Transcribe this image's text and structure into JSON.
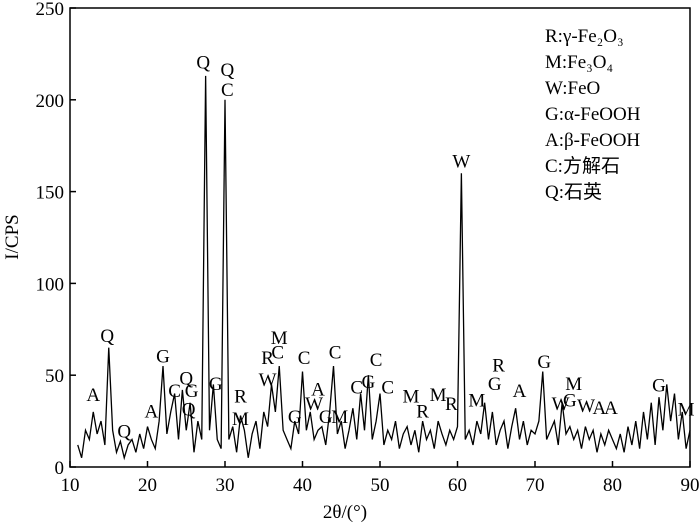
{
  "chart_data": {
    "type": "line",
    "xlabel": "2θ/(°)",
    "ylabel": "I/CPS",
    "xlim": [
      10,
      90
    ],
    "xticks": [
      10,
      20,
      30,
      40,
      50,
      60,
      70,
      80,
      90
    ],
    "ylim": [
      0,
      250
    ],
    "yticks": [
      0,
      50,
      100,
      150,
      200,
      250
    ],
    "legend_text": [
      "R:γ-Fe₂O₃",
      "M:Fe₃O₄",
      "W:FeO",
      "G:α-FeOOH",
      "A:β-FeOOH",
      "C:方解石",
      "Q:石英"
    ],
    "series": [
      {
        "color": "#000000",
        "x": [
          11,
          11.5,
          12,
          12.5,
          13,
          13.5,
          14,
          14.5,
          15,
          15.5,
          16,
          16.5,
          17,
          17.5,
          18,
          18.5,
          19,
          19.5,
          20,
          20.5,
          21,
          21.5,
          22,
          22.5,
          23,
          23.5,
          24,
          24.5,
          25,
          25.5,
          26,
          26.5,
          27,
          27.5,
          28,
          28.5,
          29,
          29.5,
          30,
          30.5,
          31,
          31.5,
          32,
          32.5,
          33,
          33.5,
          34,
          34.5,
          35,
          35.5,
          36,
          36.5,
          37,
          37.5,
          38,
          38.5,
          39,
          39.5,
          40,
          40.5,
          41,
          41.5,
          42,
          42.5,
          43,
          43.5,
          44,
          44.5,
          45,
          45.5,
          46,
          46.5,
          47,
          47.5,
          48,
          48.5,
          49,
          49.5,
          50,
          50.5,
          51,
          51.5,
          52,
          52.5,
          53,
          53.5,
          54,
          54.5,
          55,
          55.5,
          56,
          56.5,
          57,
          57.5,
          58,
          58.5,
          59,
          59.5,
          60,
          60.5,
          61,
          61.5,
          62,
          62.5,
          63,
          63.5,
          64,
          64.5,
          65,
          65.5,
          66,
          66.5,
          67,
          67.5,
          68,
          68.5,
          69,
          69.5,
          70,
          70.5,
          71,
          71.5,
          72,
          72.5,
          73,
          73.5,
          74,
          74.5,
          75,
          75.5,
          76,
          76.5,
          77,
          77.5,
          78,
          78.5,
          79,
          79.5,
          80,
          80.5,
          81,
          81.5,
          82,
          82.5,
          83,
          83.5,
          84,
          84.5,
          85,
          85.5,
          86,
          86.5,
          87,
          87.5,
          88,
          88.5,
          89,
          89.5,
          90
        ],
        "values": [
          12,
          5,
          20,
          15,
          30,
          18,
          25,
          12,
          65,
          20,
          8,
          14,
          5,
          12,
          15,
          8,
          18,
          10,
          22,
          15,
          10,
          25,
          55,
          18,
          30,
          40,
          15,
          42,
          20,
          35,
          8,
          25,
          15,
          213,
          20,
          45,
          15,
          10,
          200,
          15,
          22,
          8,
          28,
          20,
          5,
          18,
          25,
          10,
          30,
          22,
          45,
          30,
          55,
          20,
          15,
          10,
          25,
          18,
          52,
          20,
          30,
          15,
          20,
          22,
          12,
          30,
          55,
          18,
          25,
          10,
          20,
          32,
          15,
          40,
          20,
          50,
          15,
          25,
          40,
          12,
          20,
          15,
          25,
          10,
          18,
          22,
          12,
          20,
          8,
          25,
          15,
          20,
          10,
          25,
          18,
          12,
          20,
          15,
          22,
          160,
          15,
          20,
          12,
          25,
          18,
          35,
          15,
          30,
          12,
          20,
          25,
          10,
          22,
          32,
          15,
          25,
          12,
          20,
          18,
          25,
          52,
          15,
          20,
          25,
          12,
          35,
          18,
          22,
          15,
          20,
          10,
          22,
          15,
          20,
          8,
          18,
          12,
          20,
          15,
          10,
          18,
          8,
          22,
          12,
          25,
          10,
          30,
          15,
          35,
          12,
          38,
          20,
          45,
          25,
          40,
          15,
          30,
          10,
          20
        ]
      }
    ],
    "annotations": [
      {
        "text": "Q",
        "x": 14.8,
        "y": 68
      },
      {
        "text": "A",
        "x": 13,
        "y": 36
      },
      {
        "text": "Q",
        "x": 17,
        "y": 16
      },
      {
        "text": "A",
        "x": 20.5,
        "y": 27
      },
      {
        "text": "G",
        "x": 22,
        "y": 57
      },
      {
        "text": "C",
        "x": 23.5,
        "y": 38
      },
      {
        "text": "Q",
        "x": 25,
        "y": 45
      },
      {
        "text": "G",
        "x": 25.7,
        "y": 38
      },
      {
        "text": "Q",
        "x": 25.3,
        "y": 28
      },
      {
        "text": "Q",
        "x": 27.2,
        "y": 217
      },
      {
        "text": "Q",
        "x": 30.3,
        "y": 213
      },
      {
        "text": "C",
        "x": 30.3,
        "y": 202
      },
      {
        "text": "G",
        "x": 28.8,
        "y": 42
      },
      {
        "text": "R",
        "x": 32,
        "y": 35
      },
      {
        "text": "M",
        "x": 32,
        "y": 23
      },
      {
        "text": "R",
        "x": 35.5,
        "y": 56
      },
      {
        "text": "W",
        "x": 35.5,
        "y": 44
      },
      {
        "text": "M",
        "x": 37,
        "y": 67
      },
      {
        "text": "C",
        "x": 36.8,
        "y": 59
      },
      {
        "text": "G",
        "x": 39,
        "y": 24
      },
      {
        "text": "C",
        "x": 40.2,
        "y": 56
      },
      {
        "text": "A",
        "x": 42,
        "y": 39
      },
      {
        "text": "W",
        "x": 41.5,
        "y": 31
      },
      {
        "text": "G",
        "x": 43,
        "y": 24
      },
      {
        "text": "M",
        "x": 44.8,
        "y": 24
      },
      {
        "text": "C",
        "x": 44.2,
        "y": 59
      },
      {
        "text": "C",
        "x": 47,
        "y": 40
      },
      {
        "text": "G",
        "x": 48.5,
        "y": 43
      },
      {
        "text": "C",
        "x": 49.5,
        "y": 55
      },
      {
        "text": "C",
        "x": 51,
        "y": 40
      },
      {
        "text": "M",
        "x": 54,
        "y": 35
      },
      {
        "text": "R",
        "x": 55.5,
        "y": 27
      },
      {
        "text": "M",
        "x": 57.5,
        "y": 36
      },
      {
        "text": "R",
        "x": 59.2,
        "y": 31
      },
      {
        "text": "W",
        "x": 60.5,
        "y": 163
      },
      {
        "text": "M",
        "x": 62.5,
        "y": 33
      },
      {
        "text": "G",
        "x": 64.8,
        "y": 42
      },
      {
        "text": "R",
        "x": 65.3,
        "y": 52
      },
      {
        "text": "A",
        "x": 68,
        "y": 38
      },
      {
        "text": "G",
        "x": 71.2,
        "y": 54
      },
      {
        "text": "W",
        "x": 73.3,
        "y": 31
      },
      {
        "text": "G",
        "x": 74.5,
        "y": 33
      },
      {
        "text": "M",
        "x": 75,
        "y": 42
      },
      {
        "text": "W",
        "x": 76.6,
        "y": 30
      },
      {
        "text": "A",
        "x": 78.3,
        "y": 29
      },
      {
        "text": "A",
        "x": 79.8,
        "y": 29
      },
      {
        "text": "G",
        "x": 86,
        "y": 41
      },
      {
        "text": "M",
        "x": 89.5,
        "y": 28
      }
    ]
  }
}
